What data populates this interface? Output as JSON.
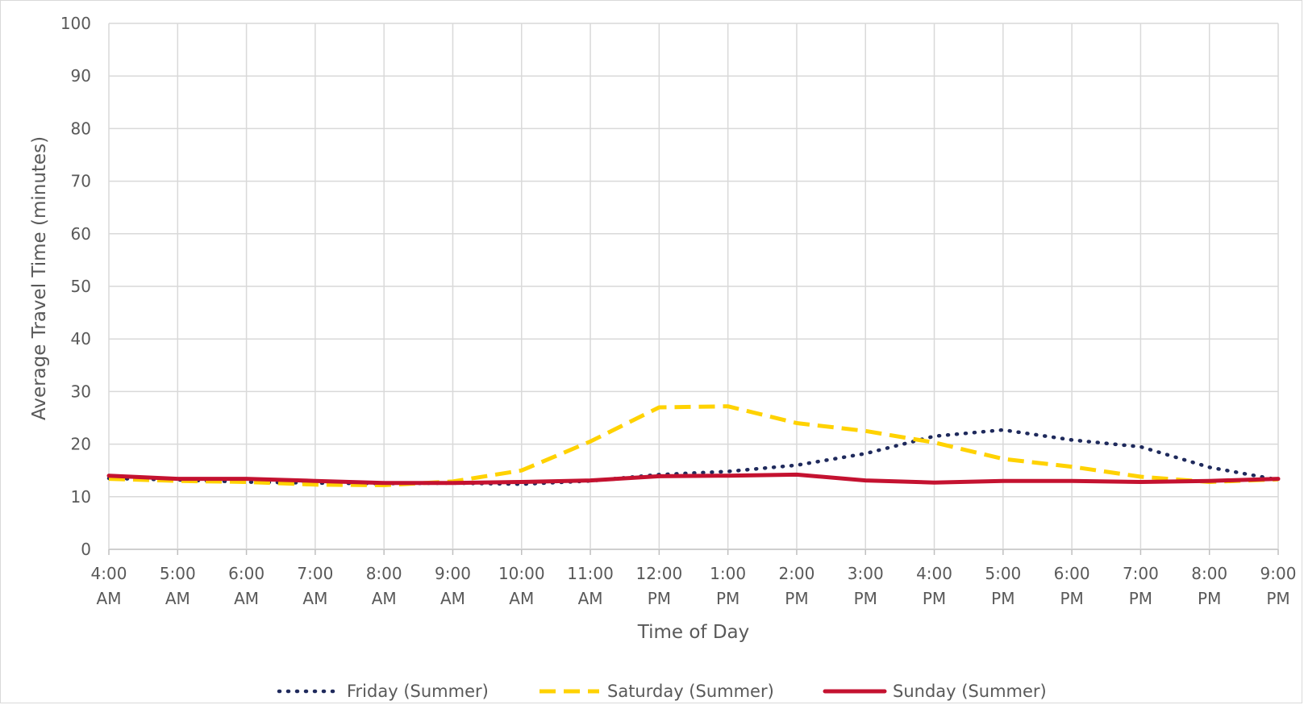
{
  "chart_data": {
    "type": "line",
    "title": "",
    "xlabel": "Time of Day",
    "ylabel": "Average Travel Time (minutes)",
    "ylim": [
      0,
      100
    ],
    "yticks": [
      "0",
      "10",
      "20",
      "30",
      "40",
      "50",
      "60",
      "70",
      "80",
      "90",
      "100"
    ],
    "grid": true,
    "legend_position": "bottom",
    "categories": [
      [
        "4:00",
        "AM"
      ],
      [
        "5:00",
        "AM"
      ],
      [
        "6:00",
        "AM"
      ],
      [
        "7:00",
        "AM"
      ],
      [
        "8:00",
        "AM"
      ],
      [
        "9:00",
        "AM"
      ],
      [
        "10:00",
        "AM"
      ],
      [
        "11:00",
        "AM"
      ],
      [
        "12:00",
        "PM"
      ],
      [
        "1:00",
        "PM"
      ],
      [
        "2:00",
        "PM"
      ],
      [
        "3:00",
        "PM"
      ],
      [
        "4:00",
        "PM"
      ],
      [
        "5:00",
        "PM"
      ],
      [
        "6:00",
        "PM"
      ],
      [
        "7:00",
        "PM"
      ],
      [
        "8:00",
        "PM"
      ],
      [
        "9:00",
        "PM"
      ]
    ],
    "series": [
      {
        "name": "Friday (Summer)",
        "color": "#1f2a5c",
        "style": "dotted",
        "values": [
          13.5,
          13.2,
          12.8,
          12.6,
          12.5,
          12.6,
          12.4,
          13.0,
          14.2,
          14.8,
          16.0,
          18.2,
          21.5,
          22.7,
          20.8,
          19.5,
          15.6,
          13.2
        ]
      },
      {
        "name": "Saturday (Summer)",
        "color": "#ffd200",
        "style": "dashed",
        "values": [
          13.4,
          13.0,
          12.8,
          12.3,
          12.2,
          12.9,
          15.0,
          20.5,
          27.0,
          27.2,
          24.0,
          22.5,
          20.3,
          17.2,
          15.7,
          13.8,
          12.8,
          13.3
        ]
      },
      {
        "name": "Sunday (Summer)",
        "color": "#c41230",
        "style": "solid",
        "values": [
          14.0,
          13.4,
          13.4,
          13.0,
          12.6,
          12.6,
          12.8,
          13.1,
          13.9,
          14.0,
          14.2,
          13.1,
          12.7,
          13.0,
          13.0,
          12.8,
          13.0,
          13.4
        ]
      }
    ]
  }
}
